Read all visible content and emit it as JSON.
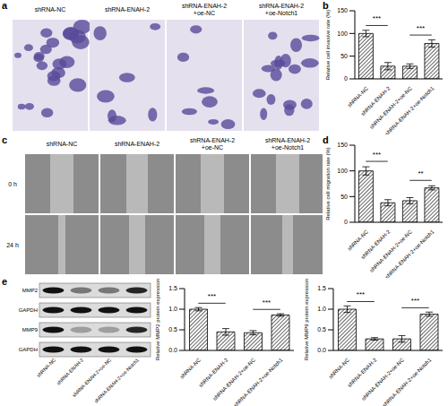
{
  "images": {
    "a": {
      "panel": "a",
      "columns": [
        "shRNA-NC",
        "shRNA-ENAH-2",
        "shRNA-ENAH-2+oe-NC",
        "shRNA-ENAH-2+oe-Notch1"
      ]
    },
    "c": {
      "panel": "c",
      "columns": [
        "shRNA-NC",
        "shRNA-ENAH-2",
        "shRNA-ENAH-2+oe-NC",
        "shRNA-ENAH-2+oe-Notch1"
      ],
      "rows": [
        "0 h",
        "24 h"
      ]
    },
    "e": {
      "panel": "e",
      "rows": [
        "MMP2",
        "GAPDH",
        "MMP9",
        "GAPDH"
      ],
      "columns": [
        "shRNA-NC",
        "shRNA-ENAH-2",
        "shRNA-ENAH-2+oe-NC",
        "shRNA-ENAH-2+oe-Notch1"
      ]
    }
  },
  "chart_data": [
    {
      "panel": "b",
      "type": "bar",
      "y_label": "Relative cell invasive rate (%)",
      "categories": [
        "shRNA-NC",
        "shRNA-ENAH-2",
        "shRNA-ENAH-2+oe-NC",
        "shRNA-ENAH-2+oe-Notch1"
      ],
      "values": [
        100,
        28,
        28,
        78
      ],
      "errors": [
        7,
        8,
        5,
        8
      ],
      "color": "#000000",
      "ylim": [
        0,
        150
      ],
      "yticks": [
        0,
        50,
        100,
        150
      ],
      "annotations": [
        {
          "from": 0,
          "to": 1,
          "label": "***"
        },
        {
          "from": 2,
          "to": 3,
          "label": "***"
        }
      ]
    },
    {
      "panel": "d",
      "type": "bar",
      "y_label": "Relative cell migration rate (%)",
      "categories": [
        "shRNA-NC",
        "shRNA-ENAH-2",
        "shRNA-ENAH-2+oe-NC",
        "shRNA-ENAH-2+oe-Notch1"
      ],
      "values": [
        100,
        38,
        42,
        67
      ],
      "errors": [
        8,
        6,
        6,
        4
      ],
      "color": "#000000",
      "ylim": [
        0,
        150
      ],
      "yticks": [
        0,
        50,
        100,
        150
      ],
      "annotations": [
        {
          "from": 0,
          "to": 1,
          "label": "***"
        },
        {
          "from": 2,
          "to": 3,
          "label": "**"
        }
      ]
    },
    {
      "type": "bar",
      "y_label": "Relative MMP2 protein expression",
      "categories": [
        "shRNA-NC",
        "shRNA-ENAH-2",
        "shRNA-ENAH-2+oe-NC",
        "shRNA-ENAH-2+oe-Notch1"
      ],
      "values": [
        1.0,
        0.45,
        0.43,
        0.86
      ],
      "errors": [
        0.04,
        0.08,
        0.05,
        0.03
      ],
      "color": "#000000",
      "ylim": [
        0,
        1.5
      ],
      "yticks": [
        {
          "value": 0,
          "label": "0.0"
        },
        {
          "value": 0.5,
          "label": "0.5"
        },
        {
          "value": 1,
          "label": "1.0"
        },
        {
          "value": 1.5,
          "label": "1.5"
        }
      ],
      "annotations": [
        {
          "from": 0,
          "to": 1,
          "label": "***"
        },
        {
          "from": 2,
          "to": 3,
          "label": "***"
        }
      ]
    },
    {
      "type": "bar",
      "y_label": "Relative MMP9 protein expression",
      "categories": [
        "shRNA-NC",
        "shRNA-ENAH-2",
        "shRNA-ENAH-2+oe-NC",
        "shRNA-ENAH-2+oe-Notch1"
      ],
      "values": [
        1.0,
        0.28,
        0.28,
        0.88
      ],
      "errors": [
        0.08,
        0.03,
        0.08,
        0.05
      ],
      "color": "#000000",
      "ylim": [
        0,
        1.5
      ],
      "yticks": [
        {
          "value": 0,
          "label": "0.0"
        },
        {
          "value": 0.5,
          "label": "0.5"
        },
        {
          "value": 1,
          "label": "1.0"
        },
        {
          "value": 1.5,
          "label": "1.5"
        }
      ],
      "annotations": [
        {
          "from": 0,
          "to": 1,
          "label": "***"
        },
        {
          "from": 2,
          "to": 3,
          "label": "***"
        }
      ]
    }
  ]
}
